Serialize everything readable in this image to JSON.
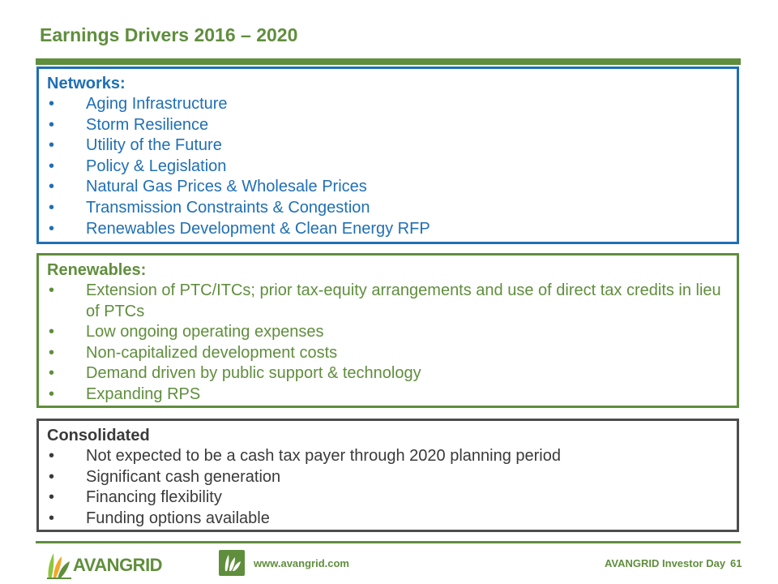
{
  "title": "Earnings Drivers 2016 – 2020",
  "networks": {
    "heading": "Networks:",
    "items": [
      "Aging Infrastructure",
      "Storm Resilience",
      "Utility of the Future",
      "Policy & Legislation",
      "Natural Gas Prices & Wholesale Prices",
      "Transmission Constraints & Congestion",
      "Renewables Development & Clean Energy RFP"
    ]
  },
  "renewables": {
    "heading": "Renewables:",
    "items": [
      "Extension of PTC/ITCs; prior tax-equity arrangements and use of direct tax credits in lieu of PTCs",
      "Low ongoing operating expenses",
      "Non-capitalized development costs",
      "Demand driven by public support & technology",
      "Expanding RPS"
    ]
  },
  "consolidated": {
    "heading": "Consolidated",
    "items": [
      "Not expected to be a cash tax payer through 2020 planning period",
      "Significant cash generation",
      "Financing flexibility",
      "Funding options available"
    ]
  },
  "bullet": "•",
  "footer": {
    "logo_text": "AVANGRID",
    "logo_icon": "avangrid-leaf-logo-icon",
    "badge_icon": "avangrid-leaf-badge-icon",
    "website": "www.avangrid.com",
    "event": "AVANGRID Investor Day",
    "page_number": "61"
  },
  "colors": {
    "green": "#5f8e3c",
    "blue": "#1f6fb5",
    "gray": "#4d4d4d"
  }
}
